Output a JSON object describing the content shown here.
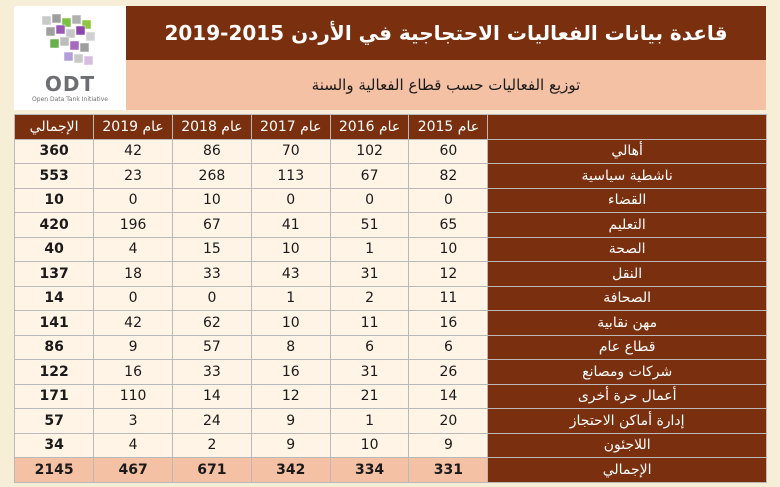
{
  "header": {
    "title": "قاعدة بيانات الفعاليات الاحتجاجية في الأردن 2015-2019",
    "subtitle": "توزيع الفعاليات حسب قطاع الفعالية والسنة"
  },
  "logo": {
    "name": "ODT",
    "tagline": "Open Data Tank Initiative"
  },
  "colors": {
    "brown": "#7a2f0e",
    "peach": "#f5c1a5",
    "cream": "#fff4e6"
  },
  "table": {
    "headers": {
      "total": "الإجمالي",
      "y2019": "عام 2019",
      "y2018": "عام 2018",
      "y2017": "عام 2017",
      "y2016": "عام 2016",
      "y2015": "عام 2015",
      "sector": ""
    },
    "rows": [
      {
        "sector": "أهالي",
        "y2015": "60",
        "y2016": "102",
        "y2017": "70",
        "y2018": "86",
        "y2019": "42",
        "total": "360"
      },
      {
        "sector": "ناشطية سياسية",
        "y2015": "82",
        "y2016": "67",
        "y2017": "113",
        "y2018": "268",
        "y2019": "23",
        "total": "553"
      },
      {
        "sector": "القضاء",
        "y2015": "0",
        "y2016": "0",
        "y2017": "0",
        "y2018": "10",
        "y2019": "0",
        "total": "10"
      },
      {
        "sector": "التعليم",
        "y2015": "65",
        "y2016": "51",
        "y2017": "41",
        "y2018": "67",
        "y2019": "196",
        "total": "420"
      },
      {
        "sector": "الصحة",
        "y2015": "10",
        "y2016": "1",
        "y2017": "10",
        "y2018": "15",
        "y2019": "4",
        "total": "40"
      },
      {
        "sector": "النقل",
        "y2015": "12",
        "y2016": "31",
        "y2017": "43",
        "y2018": "33",
        "y2019": "18",
        "total": "137"
      },
      {
        "sector": "الصحافة",
        "y2015": "11",
        "y2016": "2",
        "y2017": "1",
        "y2018": "0",
        "y2019": "0",
        "total": "14"
      },
      {
        "sector": "مهن نقابية",
        "y2015": "16",
        "y2016": "11",
        "y2017": "10",
        "y2018": "62",
        "y2019": "42",
        "total": "141"
      },
      {
        "sector": "قطاع عام",
        "y2015": "6",
        "y2016": "6",
        "y2017": "8",
        "y2018": "57",
        "y2019": "9",
        "total": "86"
      },
      {
        "sector": "شركات ومصانع",
        "y2015": "26",
        "y2016": "31",
        "y2017": "16",
        "y2018": "33",
        "y2019": "16",
        "total": "122"
      },
      {
        "sector": "أعمال حرة أخرى",
        "y2015": "14",
        "y2016": "21",
        "y2017": "12",
        "y2018": "14",
        "y2019": "110",
        "total": "171"
      },
      {
        "sector": "إدارة أماكن الاحتجاز",
        "y2015": "20",
        "y2016": "1",
        "y2017": "9",
        "y2018": "24",
        "y2019": "3",
        "total": "57"
      },
      {
        "sector": "اللاجئون",
        "y2015": "9",
        "y2016": "10",
        "y2017": "9",
        "y2018": "2",
        "y2019": "4",
        "total": "34"
      }
    ],
    "footer": {
      "sector": "الإجمالي",
      "y2015": "331",
      "y2016": "334",
      "y2017": "342",
      "y2018": "671",
      "y2019": "467",
      "total": "2145"
    }
  }
}
